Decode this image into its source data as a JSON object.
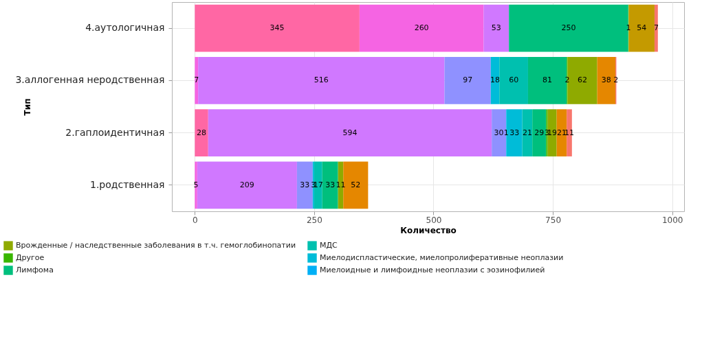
{
  "chart_data": {
    "type": "bar",
    "orientation": "horizontal",
    "stacked": true,
    "data_labels": true,
    "grid": true,
    "legend": "bottom",
    "xlabel": "Количество",
    "ylabel": "Тип",
    "categories": [
      "4.аутологичная",
      "3.аллогенная неродственная",
      "2.гаплоидентичная",
      "1.родственная"
    ],
    "xlim": [
      -48,
      1025
    ],
    "xticks": [
      0,
      250,
      500,
      750,
      1000
    ],
    "series": [
      {
        "color": "#ff67a4",
        "values": [
          345,
          null,
          28,
          null
        ]
      },
      {
        "color": "#f564e3",
        "values": [
          260,
          7,
          null,
          5
        ]
      },
      {
        "color": "#d078ff",
        "values": [
          53,
          516,
          594,
          209
        ]
      },
      {
        "color": "#8f91ff",
        "values": [
          null,
          97,
          30,
          33
        ]
      },
      {
        "name": "Миелоидные и лимфоидные неоплазии с эозинофилией",
        "color": "#00b0f6",
        "values": [
          null,
          null,
          1,
          null
        ]
      },
      {
        "name": "Миелодиспластические, миелопролиферативные неоплазии",
        "color": "#00bcd8",
        "values": [
          null,
          18,
          33,
          3
        ]
      },
      {
        "name": "МДС",
        "color": "#00c0af",
        "values": [
          null,
          60,
          21,
          17
        ]
      },
      {
        "name": "Лимфома",
        "color": "#00bf7d",
        "values": [
          250,
          81,
          29,
          33
        ]
      },
      {
        "name": "Другое",
        "color": "#39b600",
        "values": [
          1,
          2,
          3,
          null
        ]
      },
      {
        "name": "Врожденные / наследственные заболевания в т.ч. гемоглобинопатии",
        "color": "#8faa00",
        "values": [
          null,
          62,
          19,
          11
        ]
      },
      {
        "color": "#c49a00",
        "values": [
          54,
          null,
          null,
          null
        ]
      },
      {
        "color": "#e58700",
        "values": [
          null,
          38,
          21,
          52
        ]
      },
      {
        "color": "#f8766d",
        "values": [
          7,
          2,
          11,
          null
        ]
      }
    ]
  }
}
